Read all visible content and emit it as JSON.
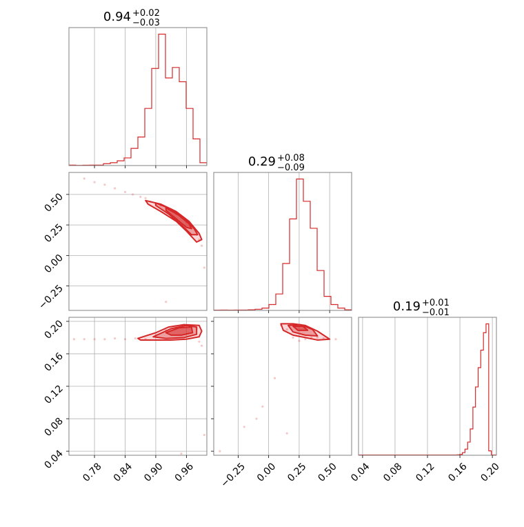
{
  "colors": {
    "accent": "#d62728",
    "grid": "#b0b0b0",
    "frame": "#808080"
  },
  "chart_data": [
    {
      "type": "histogram",
      "panel": "diag-0",
      "title_main": "0.94",
      "title_sup": "+0.02",
      "title_sub": "−0.03",
      "xlim": [
        0.73,
        1.0
      ],
      "xticks": [
        0.78,
        0.84,
        0.9,
        0.96
      ],
      "xtick_labels": [
        "0.78",
        "0.84",
        "0.90",
        "0.96"
      ],
      "bin_edges": [
        0.73,
        0.7435,
        0.757,
        0.7705,
        0.784,
        0.7975,
        0.811,
        0.8245,
        0.838,
        0.8515,
        0.865,
        0.8785,
        0.892,
        0.9055,
        0.919,
        0.9325,
        0.946,
        0.9595,
        0.973,
        0.9865,
        1.0
      ],
      "counts": [
        0.5,
        0.2,
        0.4,
        0.5,
        0.5,
        2,
        3,
        5,
        8,
        18,
        30,
        60,
        102,
        138,
        92,
        103,
        88,
        60,
        28,
        3
      ],
      "grid": true
    },
    {
      "type": "scatter-contour",
      "panel": "p1-vs-p0",
      "xlim": [
        0.73,
        1.0
      ],
      "ylim": [
        -0.45,
        0.68
      ],
      "yticks": [
        -0.25,
        0.0,
        0.25,
        0.5
      ],
      "ytick_labels": [
        "−0.25",
        "0.00",
        "0.25",
        "0.50"
      ],
      "points": [
        [
          0.76,
          0.63
        ],
        [
          0.78,
          0.6
        ],
        [
          0.8,
          0.58
        ],
        [
          0.82,
          0.55
        ],
        [
          0.84,
          0.52
        ],
        [
          0.855,
          0.5
        ],
        [
          0.87,
          0.48
        ],
        [
          0.88,
          0.47
        ],
        [
          0.89,
          0.44
        ],
        [
          0.9,
          0.42
        ],
        [
          0.91,
          0.41
        ],
        [
          0.92,
          0.39
        ],
        [
          0.93,
          0.37
        ],
        [
          0.94,
          0.34
        ],
        [
          0.95,
          0.31
        ],
        [
          0.96,
          0.27
        ],
        [
          0.97,
          0.22
        ],
        [
          0.98,
          0.17
        ],
        [
          0.985,
          0.13
        ],
        [
          0.99,
          0.08
        ],
        [
          0.995,
          -0.1
        ],
        [
          0.92,
          -0.38
        ]
      ],
      "contours": [
        [
          [
            0.88,
            0.45
          ],
          [
            0.91,
            0.42
          ],
          [
            0.94,
            0.36
          ],
          [
            0.965,
            0.28
          ],
          [
            0.985,
            0.18
          ],
          [
            0.99,
            0.13
          ],
          [
            0.98,
            0.11
          ],
          [
            0.96,
            0.2
          ],
          [
            0.94,
            0.28
          ],
          [
            0.91,
            0.36
          ],
          [
            0.885,
            0.42
          ]
        ],
        [
          [
            0.9,
            0.43
          ],
          [
            0.93,
            0.38
          ],
          [
            0.955,
            0.31
          ],
          [
            0.975,
            0.22
          ],
          [
            0.982,
            0.17
          ],
          [
            0.97,
            0.17
          ],
          [
            0.95,
            0.25
          ],
          [
            0.925,
            0.34
          ],
          [
            0.9,
            0.41
          ]
        ],
        [
          [
            0.92,
            0.39
          ],
          [
            0.945,
            0.33
          ],
          [
            0.965,
            0.26
          ],
          [
            0.97,
            0.22
          ],
          [
            0.96,
            0.23
          ],
          [
            0.94,
            0.3
          ],
          [
            0.92,
            0.37
          ]
        ]
      ],
      "grid": true
    },
    {
      "type": "histogram",
      "panel": "diag-1",
      "title_main": "0.29",
      "title_sup": "+0.08",
      "title_sub": "−0.09",
      "xlim": [
        -0.45,
        0.68
      ],
      "xticks": [
        -0.25,
        0.0,
        0.25,
        0.5
      ],
      "xtick_labels": [
        "−0.25",
        "0.00",
        "0.25",
        "0.50"
      ],
      "bin_edges": [
        -0.45,
        -0.3935,
        -0.337,
        -0.2805,
        -0.224,
        -0.1675,
        -0.111,
        -0.0545,
        0.002,
        0.0585,
        0.115,
        0.1715,
        0.228,
        0.2845,
        0.341,
        0.3975,
        0.454,
        0.5105,
        0.567,
        0.6235,
        0.68
      ],
      "counts": [
        0.2,
        0.3,
        0.2,
        0.3,
        0.3,
        0.5,
        1.0,
        2,
        5,
        14,
        40,
        78,
        112,
        93,
        70,
        34,
        12,
        5,
        2,
        0.5
      ],
      "grid": true
    },
    {
      "type": "scatter-contour",
      "panel": "p2-vs-p0",
      "xlim": [
        0.73,
        1.0
      ],
      "ylim": [
        0.035,
        0.205
      ],
      "yticks": [
        0.04,
        0.08,
        0.12,
        0.16,
        0.2
      ],
      "ytick_labels": [
        "0.04",
        "0.08",
        "0.12",
        "0.16",
        "0.20"
      ],
      "xticks": [
        0.78,
        0.84,
        0.9,
        0.96
      ],
      "xtick_labels": [
        "0.78",
        "0.84",
        "0.90",
        "0.96"
      ],
      "points": [
        [
          0.74,
          0.178
        ],
        [
          0.76,
          0.178
        ],
        [
          0.78,
          0.178
        ],
        [
          0.8,
          0.178
        ],
        [
          0.82,
          0.179
        ],
        [
          0.84,
          0.178
        ],
        [
          0.86,
          0.179
        ],
        [
          0.88,
          0.178
        ],
        [
          0.9,
          0.183
        ],
        [
          0.92,
          0.189
        ],
        [
          0.94,
          0.193
        ],
        [
          0.96,
          0.194
        ],
        [
          0.98,
          0.191
        ],
        [
          0.99,
          0.17
        ],
        [
          0.995,
          0.06
        ],
        [
          0.95,
          0.037
        ],
        [
          0.985,
          0.175
        ]
      ],
      "contours": [
        [
          [
            0.865,
            0.179
          ],
          [
            0.9,
            0.186
          ],
          [
            0.925,
            0.193
          ],
          [
            0.955,
            0.196
          ],
          [
            0.985,
            0.195
          ],
          [
            0.99,
            0.188
          ],
          [
            0.985,
            0.181
          ],
          [
            0.96,
            0.178
          ],
          [
            0.93,
            0.177
          ],
          [
            0.9,
            0.177
          ],
          [
            0.87,
            0.177
          ]
        ],
        [
          [
            0.895,
            0.181
          ],
          [
            0.93,
            0.191
          ],
          [
            0.96,
            0.195
          ],
          [
            0.98,
            0.193
          ],
          [
            0.98,
            0.184
          ],
          [
            0.955,
            0.18
          ],
          [
            0.92,
            0.179
          ]
        ],
        [
          [
            0.92,
            0.186
          ],
          [
            0.945,
            0.192
          ],
          [
            0.97,
            0.193
          ],
          [
            0.972,
            0.186
          ],
          [
            0.95,
            0.183
          ],
          [
            0.93,
            0.183
          ]
        ]
      ],
      "grid": true
    },
    {
      "type": "scatter-contour",
      "panel": "p2-vs-p1",
      "xlim": [
        -0.45,
        0.68
      ],
      "ylim": [
        0.035,
        0.205
      ],
      "xticks": [
        -0.25,
        0.0,
        0.25,
        0.5
      ],
      "xtick_labels": [
        "−0.25",
        "0.00",
        "0.25",
        "0.50"
      ],
      "points": [
        [
          0.1,
          0.195
        ],
        [
          0.15,
          0.19
        ],
        [
          0.2,
          0.18
        ],
        [
          0.25,
          0.176
        ],
        [
          0.3,
          0.178
        ],
        [
          0.35,
          0.18
        ],
        [
          0.4,
          0.18
        ],
        [
          0.45,
          0.179
        ],
        [
          0.55,
          0.178
        ],
        [
          0.05,
          0.13
        ],
        [
          -0.05,
          0.095
        ],
        [
          -0.1,
          0.08
        ],
        [
          -0.2,
          0.07
        ],
        [
          0.15,
          0.062
        ],
        [
          -0.4,
          0.04
        ]
      ],
      "contours": [
        [
          [
            0.1,
            0.197
          ],
          [
            0.2,
            0.197
          ],
          [
            0.3,
            0.195
          ],
          [
            0.4,
            0.188
          ],
          [
            0.5,
            0.178
          ],
          [
            0.4,
            0.177
          ],
          [
            0.3,
            0.18
          ],
          [
            0.2,
            0.183
          ],
          [
            0.12,
            0.189
          ]
        ],
        [
          [
            0.16,
            0.195
          ],
          [
            0.26,
            0.196
          ],
          [
            0.36,
            0.19
          ],
          [
            0.4,
            0.182
          ],
          [
            0.3,
            0.183
          ],
          [
            0.2,
            0.187
          ]
        ],
        [
          [
            0.2,
            0.194
          ],
          [
            0.28,
            0.194
          ],
          [
            0.32,
            0.189
          ],
          [
            0.24,
            0.189
          ]
        ]
      ],
      "grid": true
    },
    {
      "type": "histogram",
      "panel": "diag-2",
      "title_main": "0.19",
      "title_sup": "+0.01",
      "title_sub": "−0.01",
      "xlim": [
        0.035,
        0.205
      ],
      "xticks": [
        0.04,
        0.08,
        0.12,
        0.16,
        0.2
      ],
      "xtick_labels": [
        "0.04",
        "0.08",
        "0.12",
        "0.16",
        "0.20"
      ],
      "bin_edges": [
        0.035,
        0.1565,
        0.1597,
        0.163,
        0.1662,
        0.1695,
        0.1727,
        0.176,
        0.1792,
        0.1825,
        0.1857,
        0.189,
        0.1922,
        0.1955,
        0.1987,
        0.205
      ],
      "counts": [
        0.3,
        0.5,
        1,
        3,
        7,
        15,
        30,
        55,
        78,
        100,
        120,
        140,
        150,
        5,
        0.3
      ],
      "grid": true
    }
  ]
}
